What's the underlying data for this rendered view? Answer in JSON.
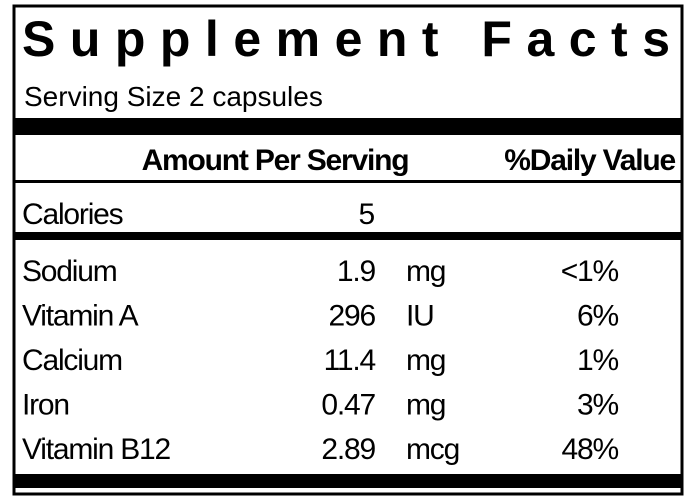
{
  "header": {
    "title": "Supplement Facts",
    "serving": "Serving Size 2 capsules"
  },
  "columns": {
    "amount": "Amount Per Serving",
    "daily_value": "%Daily Value"
  },
  "calories": {
    "name": "Calories",
    "amount": "5"
  },
  "nutrients": [
    {
      "name": "Sodium",
      "amount": "1.9",
      "unit": "mg",
      "dv": "<1%"
    },
    {
      "name": "Vitamin A",
      "amount": "296",
      "unit": "IU",
      "dv": "6%"
    },
    {
      "name": "Calcium",
      "amount": "11.4",
      "unit": "mg",
      "dv": "1%"
    },
    {
      "name": "Iron",
      "amount": "0.47",
      "unit": "mg",
      "dv": "3%"
    },
    {
      "name": "Vitamin B12",
      "amount": "2.89",
      "unit": "mcg",
      "dv": "48%"
    }
  ]
}
